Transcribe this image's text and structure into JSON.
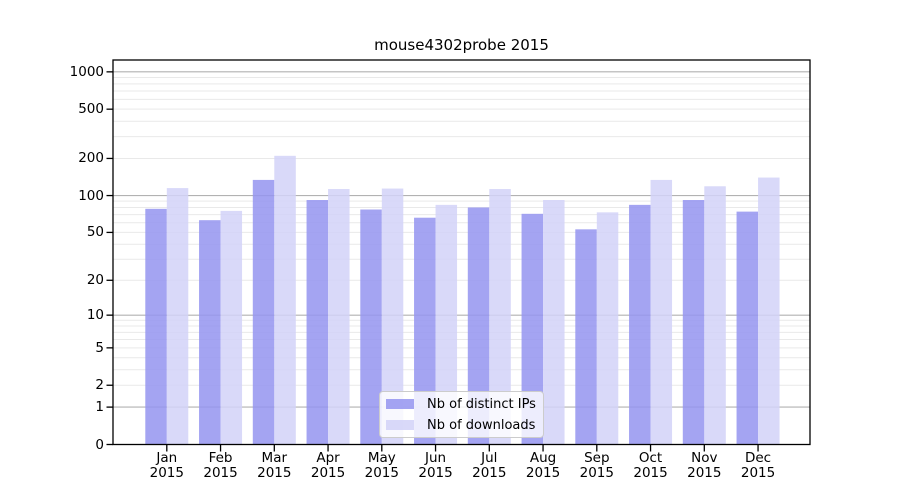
{
  "figure": {
    "title": "mouse4302probe 2015",
    "background": "#ffffff"
  },
  "chart_data": {
    "type": "bar",
    "title": "mouse4302probe 2015",
    "categories": [
      "Jan",
      "Feb",
      "Mar",
      "Apr",
      "May",
      "Jun",
      "Jul",
      "Aug",
      "Sep",
      "Oct",
      "Nov",
      "Dec"
    ],
    "category_year": "2015",
    "series": [
      {
        "name": "Nb of distinct IPs",
        "color": "#9494f0",
        "values": [
          78,
          63,
          134,
          92,
          77,
          66,
          80,
          71,
          53,
          84,
          92,
          74
        ]
      },
      {
        "name": "Nb of downloads",
        "color": "#d2d2f8",
        "values": [
          115,
          75,
          210,
          113,
          114,
          84,
          113,
          92,
          73,
          134,
          119,
          140
        ]
      }
    ],
    "yscale": "log1p",
    "yticks": [
      0,
      1,
      2,
      5,
      10,
      20,
      50,
      100,
      200,
      500,
      1000
    ],
    "ylim": [
      0,
      1250
    ],
    "xlabel": "",
    "ylabel": "",
    "grid": {
      "axis": "y",
      "major_color": "#b2b2b2",
      "minor_color": "#e9e9e9"
    },
    "legend": {
      "position": "lower center"
    }
  }
}
